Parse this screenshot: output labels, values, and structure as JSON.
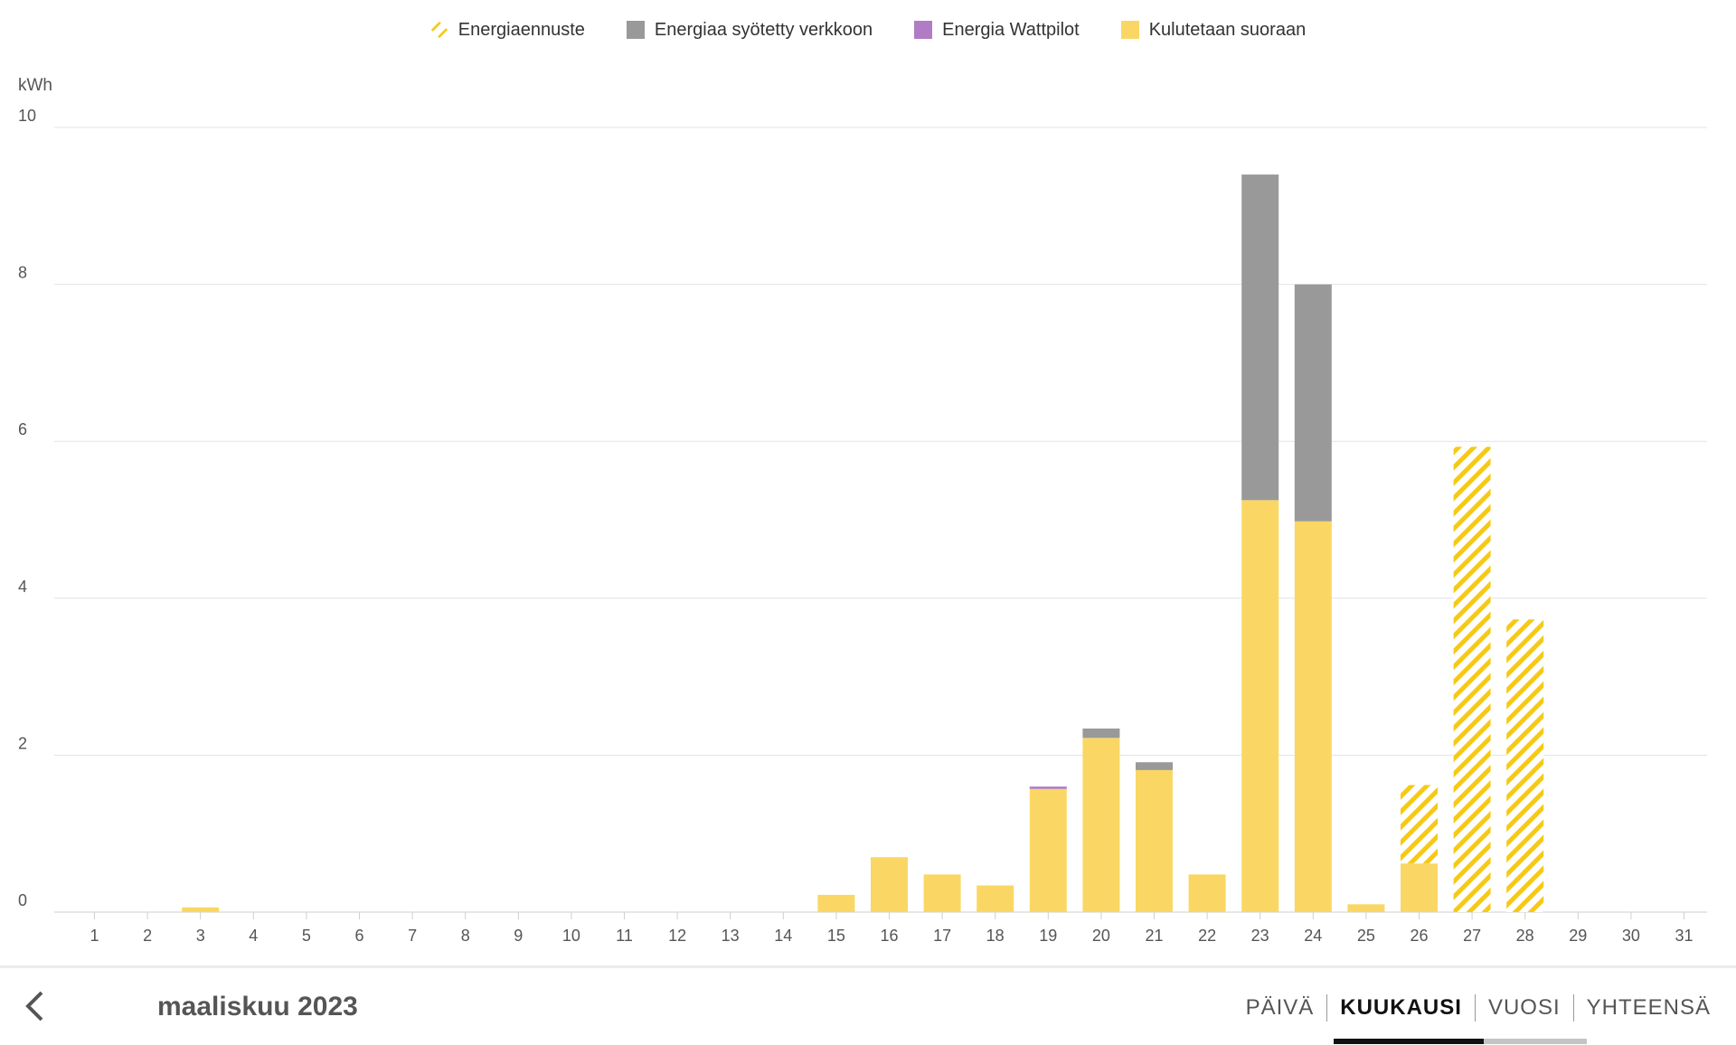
{
  "colors": {
    "forecast": "#f6c915",
    "grid": "#999999",
    "wattpilot": "#b07cc6",
    "direct": "#fad764"
  },
  "chart_data": {
    "type": "bar",
    "ylabel": "kWh",
    "ylim": [
      0,
      10
    ],
    "yticks": [
      "0",
      "2",
      "4",
      "6",
      "8",
      "10"
    ],
    "categories": [
      "1",
      "2",
      "3",
      "4",
      "5",
      "6",
      "7",
      "8",
      "9",
      "10",
      "11",
      "12",
      "13",
      "14",
      "15",
      "16",
      "17",
      "18",
      "19",
      "20",
      "21",
      "22",
      "23",
      "24",
      "25",
      "26",
      "27",
      "28",
      "29",
      "30",
      "31"
    ],
    "legend": [
      {
        "key": "forecast",
        "label": "Energiaennuste"
      },
      {
        "key": "grid",
        "label": "Energiaa syötetty verkkoon"
      },
      {
        "key": "wattpilot",
        "label": "Energia Wattpilot"
      },
      {
        "key": "direct",
        "label": "Kulutetaan suoraan"
      }
    ],
    "series": [
      {
        "name": "Kulutetaan suoraan",
        "key": "direct",
        "values": [
          0,
          0,
          0.06,
          0,
          0,
          0,
          0,
          0,
          0,
          0,
          0,
          0,
          0,
          0,
          0.22,
          0.7,
          0.48,
          0.34,
          1.57,
          2.22,
          1.81,
          0.48,
          5.25,
          4.98,
          0.1,
          0.62,
          0,
          0,
          0,
          0,
          0
        ]
      },
      {
        "name": "Energia Wattpilot",
        "key": "wattpilot",
        "values": [
          0,
          0,
          0,
          0,
          0,
          0,
          0,
          0,
          0,
          0,
          0,
          0,
          0,
          0,
          0,
          0,
          0,
          0,
          0.03,
          0,
          0,
          0,
          0,
          0,
          0,
          0,
          0,
          0,
          0,
          0,
          0
        ]
      },
      {
        "name": "Energiaa syötetty verkkoon",
        "key": "grid",
        "values": [
          0,
          0,
          0,
          0,
          0,
          0,
          0,
          0,
          0,
          0,
          0,
          0,
          0,
          0,
          0,
          0,
          0,
          0,
          0,
          0.12,
          0.1,
          0,
          4.15,
          3.02,
          0,
          0,
          0,
          0,
          0,
          0,
          0
        ]
      },
      {
        "name": "Energiaennuste",
        "key": "forecast",
        "values": [
          0,
          0,
          0,
          0,
          0,
          0,
          0,
          0,
          0,
          0,
          0,
          0,
          0,
          0,
          0,
          0,
          0,
          0,
          0,
          0,
          0,
          0,
          0,
          0,
          0,
          1.62,
          5.93,
          3.73,
          0,
          0,
          0
        ]
      }
    ],
    "grid": true,
    "legend_position": "top-center"
  },
  "footer": {
    "period": "maaliskuu 2023",
    "tabs": [
      "PÄIVÄ",
      "KUUKAUSI",
      "VUOSI",
      "YHTEENSÄ"
    ],
    "active_tab": "KUUKAUSI"
  }
}
